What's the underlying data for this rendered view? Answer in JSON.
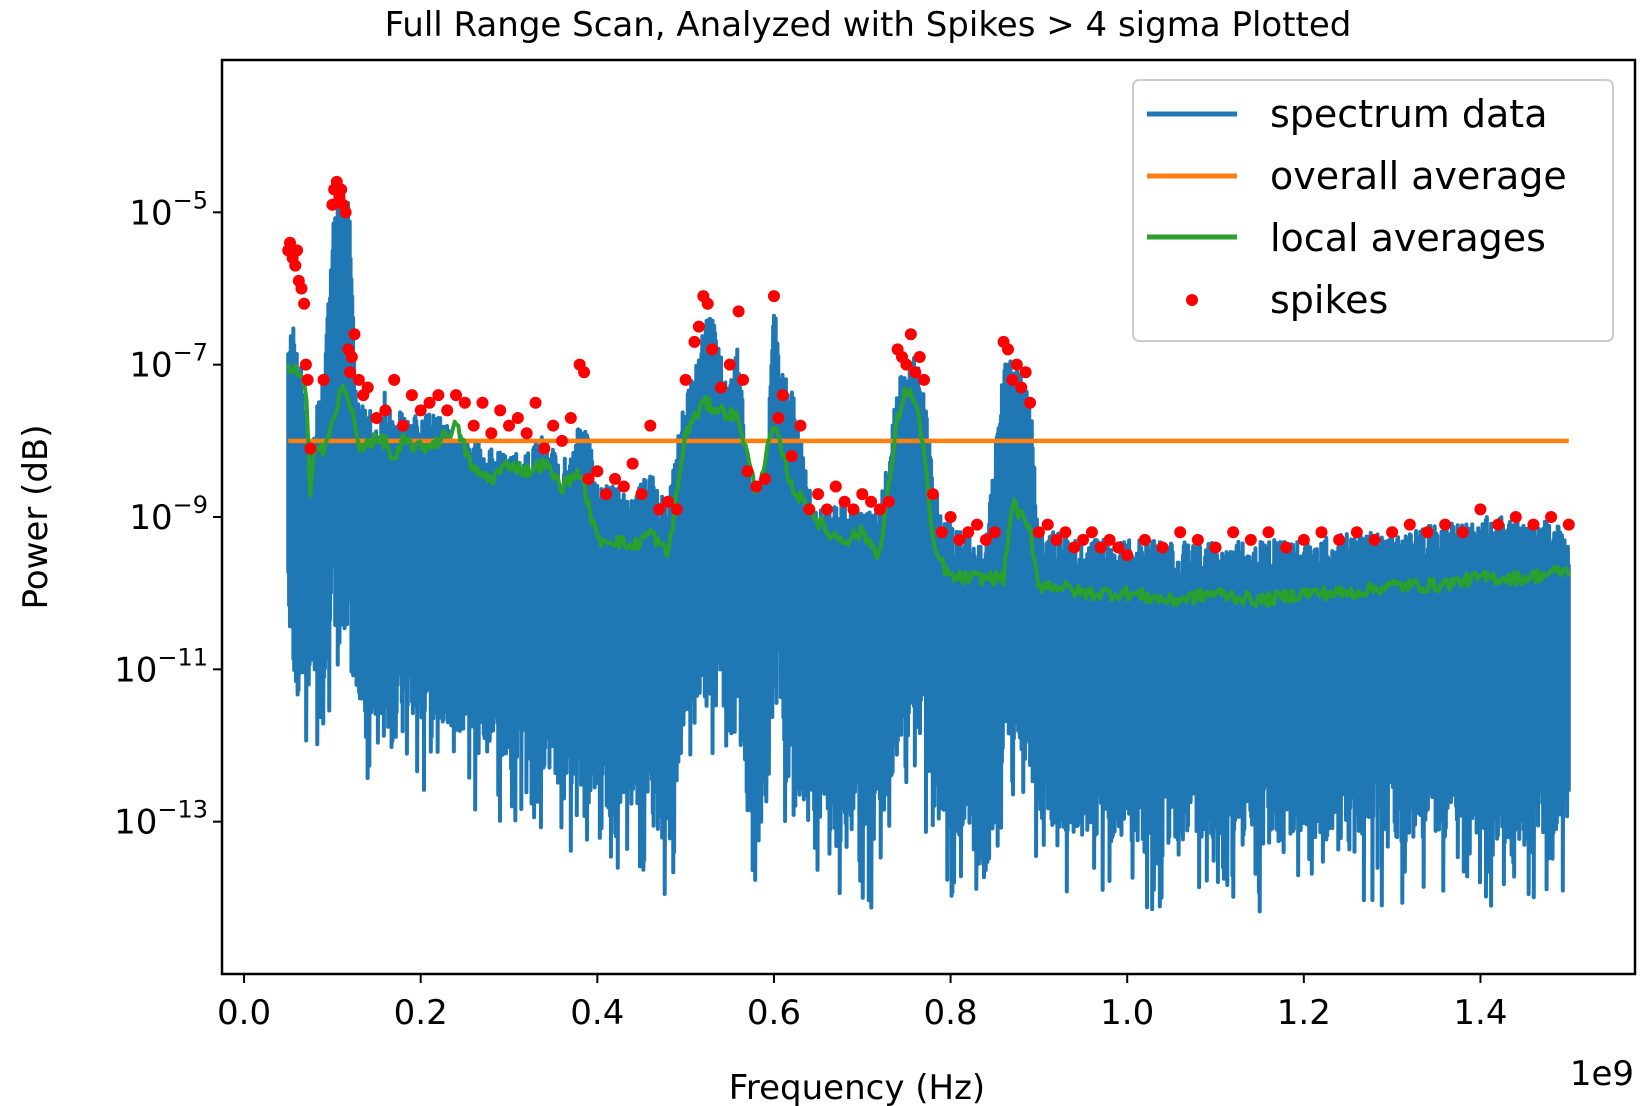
{
  "chart_data": {
    "type": "line",
    "title": "Full Range Scan, Analyzed with Spikes > 4 sigma Plotted",
    "xlabel": "Frequency (Hz)",
    "ylabel": "Power (dB)",
    "x_offset_label": "1e9",
    "x_scale": "linear",
    "y_scale": "log",
    "xlim": [
      -0.025,
      1.575
    ],
    "ylim_exponent": [
      -15.0,
      -3.0
    ],
    "x_ticks": [
      0.0,
      0.2,
      0.4,
      0.6,
      0.8,
      1.0,
      1.2,
      1.4
    ],
    "x_tick_labels": [
      "0.0",
      "0.2",
      "0.4",
      "0.6",
      "0.8",
      "1.0",
      "1.2",
      "1.4"
    ],
    "y_ticks": [
      {
        "base": "10",
        "exponent": "−5",
        "value_exponent": -5
      },
      {
        "base": "10",
        "exponent": "−7",
        "value_exponent": -7
      },
      {
        "base": "10",
        "exponent": "−9",
        "value_exponent": -9
      },
      {
        "base": "10",
        "exponent": "−11",
        "value_exponent": -11
      },
      {
        "base": "10",
        "exponent": "−13",
        "value_exponent": -13
      }
    ],
    "grid": false,
    "legend_position": "top-right",
    "series": [
      {
        "name": "spectrum data",
        "color": "#1f77b4",
        "style": "line",
        "x": [
          0.05,
          0.055,
          0.06,
          0.065,
          0.07,
          0.075,
          0.08,
          0.09,
          0.1,
          0.105,
          0.11,
          0.115,
          0.12,
          0.125,
          0.13,
          0.14,
          0.15,
          0.16,
          0.17,
          0.18,
          0.19,
          0.2,
          0.22,
          0.24,
          0.26,
          0.28,
          0.3,
          0.32,
          0.34,
          0.36,
          0.38,
          0.39,
          0.4,
          0.42,
          0.44,
          0.46,
          0.48,
          0.5,
          0.51,
          0.52,
          0.53,
          0.54,
          0.55,
          0.56,
          0.57,
          0.58,
          0.59,
          0.6,
          0.61,
          0.62,
          0.63,
          0.64,
          0.65,
          0.66,
          0.68,
          0.7,
          0.72,
          0.74,
          0.75,
          0.76,
          0.77,
          0.78,
          0.8,
          0.82,
          0.84,
          0.86,
          0.87,
          0.88,
          0.89,
          0.9,
          0.92,
          0.95,
          1.0,
          1.05,
          1.1,
          1.15,
          1.2,
          1.25,
          1.3,
          1.35,
          1.4,
          1.45,
          1.5
        ],
        "y_max_exponent": [
          -6.5,
          -6.4,
          -6.8,
          -7.0,
          -7.9,
          -8.3,
          -7.7,
          -7.0,
          -5.2,
          -4.7,
          -4.6,
          -4.8,
          -4.9,
          -6.8,
          -7.5,
          -7.5,
          -7.8,
          -7.3,
          -7.8,
          -7.5,
          -7.6,
          -7.7,
          -7.6,
          -7.8,
          -7.9,
          -8.1,
          -8.2,
          -8.1,
          -7.9,
          -8.3,
          -7.8,
          -7.9,
          -8.5,
          -8.6,
          -8.7,
          -8.4,
          -8.8,
          -7.3,
          -7.1,
          -6.4,
          -6.2,
          -6.9,
          -7.3,
          -6.6,
          -8.4,
          -8.5,
          -8.5,
          -6.2,
          -7.1,
          -7.3,
          -7.9,
          -8.5,
          -8.9,
          -8.9,
          -8.8,
          -8.9,
          -8.9,
          -7.2,
          -7.0,
          -6.8,
          -7.3,
          -8.5,
          -9.1,
          -9.2,
          -9.3,
          -7.0,
          -6.9,
          -7.1,
          -7.4,
          -9.1,
          -9.2,
          -9.3,
          -9.3,
          -9.3,
          -9.3,
          -9.3,
          -9.3,
          -9.2,
          -9.2,
          -9.1,
          -9.0,
          -9.0,
          -9.1
        ],
        "y_min_exponent": [
          -10.4,
          -10.8,
          -12.3,
          -11.2,
          -11.7,
          -11.3,
          -11.0,
          -11.5,
          -10.8,
          -10.9,
          -11.2,
          -11.0,
          -11.0,
          -11.3,
          -11.5,
          -11.7,
          -11.9,
          -11.7,
          -11.8,
          -11.6,
          -11.6,
          -11.7,
          -11.8,
          -11.8,
          -12.0,
          -12.1,
          -12.3,
          -12.2,
          -12.3,
          -12.5,
          -12.6,
          -12.8,
          -12.6,
          -13.1,
          -12.8,
          -13.0,
          -13.4,
          -11.8,
          -11.3,
          -11.5,
          -11.4,
          -11.7,
          -12.0,
          -11.8,
          -12.9,
          -13.0,
          -13.0,
          -11.6,
          -12.0,
          -12.4,
          -12.7,
          -12.9,
          -13.2,
          -13.1,
          -13.2,
          -13.3,
          -13.2,
          -12.0,
          -11.7,
          -11.6,
          -12.2,
          -12.8,
          -13.1,
          -13.3,
          -13.8,
          -12.2,
          -11.9,
          -12.1,
          -12.4,
          -13.0,
          -13.1,
          -13.2,
          -13.3,
          -13.3,
          -13.2,
          -13.3,
          -13.2,
          -13.3,
          -13.2,
          -13.3,
          -13.2,
          -13.3,
          -13.1
        ]
      },
      {
        "name": "overall average",
        "color": "#ff7f0e",
        "style": "line",
        "x": [
          0.05,
          1.5
        ],
        "y_exponent": [
          -8.0,
          -8.0
        ]
      },
      {
        "name": "local averages",
        "color": "#2ca02c",
        "style": "line",
        "x": [
          0.05,
          0.06,
          0.07,
          0.075,
          0.08,
          0.09,
          0.1,
          0.11,
          0.12,
          0.13,
          0.14,
          0.15,
          0.16,
          0.17,
          0.18,
          0.2,
          0.22,
          0.24,
          0.26,
          0.28,
          0.3,
          0.32,
          0.34,
          0.36,
          0.38,
          0.4,
          0.42,
          0.44,
          0.46,
          0.48,
          0.5,
          0.52,
          0.54,
          0.56,
          0.58,
          0.6,
          0.62,
          0.64,
          0.66,
          0.68,
          0.7,
          0.72,
          0.74,
          0.75,
          0.76,
          0.77,
          0.78,
          0.8,
          0.82,
          0.84,
          0.86,
          0.87,
          0.88,
          0.89,
          0.9,
          0.92,
          0.95,
          1.0,
          1.05,
          1.1,
          1.15,
          1.2,
          1.25,
          1.3,
          1.35,
          1.4,
          1.45,
          1.5
        ],
        "y_exponent": [
          -7.0,
          -7.1,
          -7.3,
          -8.8,
          -8.0,
          -8.1,
          -7.8,
          -7.3,
          -7.5,
          -8.1,
          -8.0,
          -8.0,
          -8.0,
          -8.3,
          -8.0,
          -8.1,
          -8.0,
          -7.8,
          -8.4,
          -8.5,
          -8.3,
          -8.4,
          -8.3,
          -8.6,
          -8.4,
          -9.3,
          -9.3,
          -9.4,
          -9.2,
          -9.5,
          -7.9,
          -7.5,
          -7.6,
          -7.7,
          -8.7,
          -7.8,
          -8.6,
          -8.9,
          -9.2,
          -9.3,
          -9.2,
          -9.5,
          -7.7,
          -7.3,
          -7.5,
          -8.1,
          -9.4,
          -9.8,
          -9.8,
          -9.8,
          -9.8,
          -8.8,
          -9.0,
          -9.2,
          -9.9,
          -9.9,
          -10.0,
          -10.0,
          -10.1,
          -10.0,
          -10.1,
          -10.0,
          -10.0,
          -9.9,
          -9.9,
          -9.8,
          -9.8,
          -9.7
        ]
      },
      {
        "name": "spikes",
        "color": "#ff0000",
        "style": "scatter",
        "x": [
          0.05,
          0.052,
          0.055,
          0.058,
          0.06,
          0.062,
          0.065,
          0.068,
          0.07,
          0.072,
          0.075,
          0.09,
          0.1,
          0.102,
          0.105,
          0.108,
          0.11,
          0.112,
          0.115,
          0.118,
          0.12,
          0.122,
          0.125,
          0.13,
          0.135,
          0.14,
          0.15,
          0.16,
          0.17,
          0.18,
          0.19,
          0.2,
          0.21,
          0.22,
          0.23,
          0.24,
          0.25,
          0.26,
          0.27,
          0.28,
          0.29,
          0.3,
          0.31,
          0.32,
          0.33,
          0.34,
          0.35,
          0.36,
          0.37,
          0.38,
          0.385,
          0.39,
          0.4,
          0.41,
          0.42,
          0.43,
          0.44,
          0.45,
          0.46,
          0.47,
          0.48,
          0.49,
          0.5,
          0.51,
          0.515,
          0.52,
          0.525,
          0.53,
          0.54,
          0.55,
          0.56,
          0.565,
          0.57,
          0.58,
          0.59,
          0.6,
          0.605,
          0.61,
          0.62,
          0.63,
          0.64,
          0.65,
          0.66,
          0.67,
          0.68,
          0.69,
          0.7,
          0.71,
          0.72,
          0.73,
          0.74,
          0.745,
          0.75,
          0.755,
          0.76,
          0.765,
          0.77,
          0.78,
          0.79,
          0.8,
          0.81,
          0.82,
          0.83,
          0.84,
          0.85,
          0.86,
          0.865,
          0.87,
          0.875,
          0.88,
          0.885,
          0.89,
          0.9,
          0.91,
          0.92,
          0.93,
          0.94,
          0.95,
          0.96,
          0.97,
          0.98,
          0.99,
          1.0,
          1.02,
          1.04,
          1.06,
          1.08,
          1.1,
          1.12,
          1.14,
          1.16,
          1.18,
          1.2,
          1.22,
          1.24,
          1.26,
          1.28,
          1.3,
          1.32,
          1.34,
          1.36,
          1.38,
          1.4,
          1.42,
          1.44,
          1.46,
          1.48,
          1.5
        ],
        "y_exponent": [
          -5.5,
          -5.4,
          -5.6,
          -5.7,
          -5.5,
          -5.9,
          -6.0,
          -6.2,
          -7.0,
          -7.2,
          -8.1,
          -7.2,
          -4.9,
          -4.7,
          -4.6,
          -4.8,
          -4.7,
          -4.9,
          -5.0,
          -6.8,
          -7.1,
          -6.9,
          -6.6,
          -7.2,
          -7.4,
          -7.3,
          -7.7,
          -7.6,
          -7.2,
          -7.8,
          -7.4,
          -7.6,
          -7.5,
          -7.4,
          -7.6,
          -7.4,
          -7.5,
          -7.8,
          -7.5,
          -7.9,
          -7.6,
          -7.8,
          -7.7,
          -7.9,
          -7.5,
          -8.1,
          -7.8,
          -8.0,
          -7.7,
          -7.0,
          -7.1,
          -8.5,
          -8.4,
          -8.7,
          -8.5,
          -8.6,
          -8.3,
          -8.7,
          -7.8,
          -8.9,
          -8.8,
          -8.9,
          -7.2,
          -6.7,
          -6.5,
          -6.1,
          -6.2,
          -6.8,
          -7.3,
          -7.0,
          -6.3,
          -7.2,
          -8.4,
          -8.6,
          -8.5,
          -6.1,
          -7.7,
          -7.4,
          -8.2,
          -7.8,
          -8.9,
          -8.7,
          -8.9,
          -8.6,
          -8.8,
          -8.9,
          -8.7,
          -8.8,
          -8.9,
          -8.8,
          -6.8,
          -6.9,
          -7.0,
          -6.6,
          -7.1,
          -6.9,
          -7.2,
          -8.7,
          -9.2,
          -9.0,
          -9.3,
          -9.2,
          -9.1,
          -9.3,
          -9.2,
          -6.7,
          -6.8,
          -7.2,
          -7.0,
          -7.3,
          -7.1,
          -7.5,
          -9.2,
          -9.1,
          -9.3,
          -9.2,
          -9.4,
          -9.3,
          -9.2,
          -9.4,
          -9.3,
          -9.4,
          -9.5,
          -9.3,
          -9.4,
          -9.2,
          -9.3,
          -9.4,
          -9.2,
          -9.3,
          -9.2,
          -9.4,
          -9.3,
          -9.2,
          -9.3,
          -9.2,
          -9.3,
          -9.2,
          -9.1,
          -9.2,
          -9.1,
          -9.2,
          -8.9,
          -9.1,
          -9.0,
          -9.1,
          -9.0,
          -9.1
        ]
      }
    ]
  }
}
